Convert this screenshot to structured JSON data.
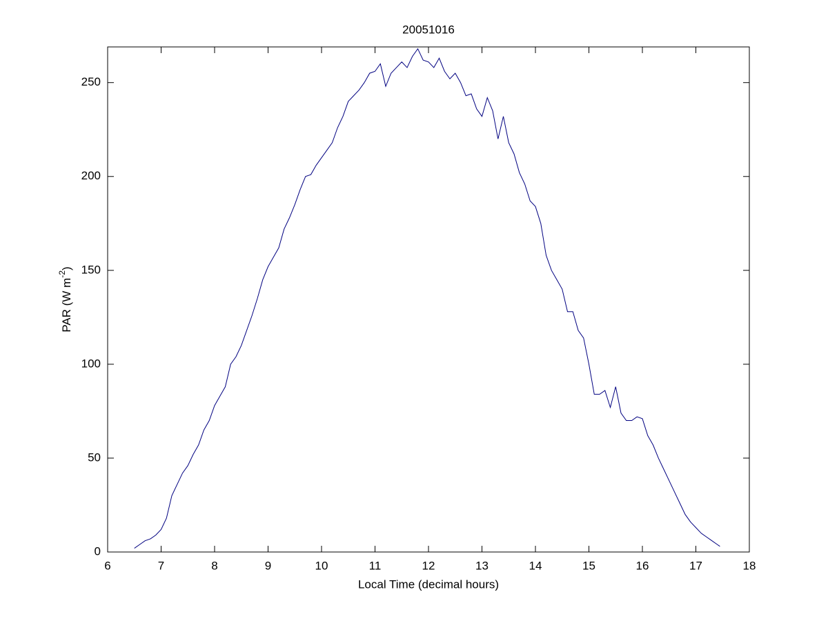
{
  "chart_data": {
    "type": "line",
    "title": "20051016",
    "xlabel": "Local Time (decimal hours)",
    "ylabel": [
      "PAR (W m",
      "-2",
      ")"
    ],
    "x": [
      6.5,
      6.6,
      6.7,
      6.8,
      6.9,
      7.0,
      7.1,
      7.2,
      7.3,
      7.4,
      7.5,
      7.6,
      7.7,
      7.8,
      7.9,
      8.0,
      8.1,
      8.2,
      8.3,
      8.4,
      8.5,
      8.6,
      8.7,
      8.8,
      8.9,
      9.0,
      9.1,
      9.2,
      9.3,
      9.4,
      9.5,
      9.6,
      9.7,
      9.8,
      9.9,
      10.0,
      10.1,
      10.2,
      10.3,
      10.4,
      10.5,
      10.6,
      10.7,
      10.8,
      10.9,
      11.0,
      11.1,
      11.2,
      11.3,
      11.4,
      11.5,
      11.6,
      11.7,
      11.8,
      11.9,
      12.0,
      12.1,
      12.2,
      12.3,
      12.4,
      12.5,
      12.6,
      12.7,
      12.8,
      12.9,
      13.0,
      13.1,
      13.2,
      13.3,
      13.4,
      13.5,
      13.6,
      13.7,
      13.8,
      13.9,
      14.0,
      14.1,
      14.2,
      14.3,
      14.4,
      14.5,
      14.6,
      14.7,
      14.8,
      14.9,
      15.0,
      15.1,
      15.2,
      15.3,
      15.4,
      15.5,
      15.6,
      15.7,
      15.8,
      15.9,
      16.0,
      16.1,
      16.2,
      16.3,
      16.4,
      16.5,
      16.6,
      16.7,
      16.8,
      16.9,
      17.0,
      17.1,
      17.2,
      17.3,
      17.4,
      17.45
    ],
    "series": [
      {
        "name": "PAR",
        "color": "#000080",
        "values": [
          2,
          4,
          6,
          7,
          9,
          12,
          18,
          30,
          36,
          42,
          46,
          52,
          57,
          65,
          70,
          78,
          83,
          88,
          100,
          104,
          110,
          118,
          126,
          135,
          145,
          152,
          157,
          162,
          172,
          178,
          185,
          193,
          200,
          201,
          206,
          210,
          214,
          218,
          226,
          232,
          240,
          243,
          246,
          250,
          255,
          256,
          260,
          248,
          255,
          258,
          261,
          258,
          264,
          268,
          262,
          261,
          258,
          263,
          256,
          252,
          255,
          250,
          243,
          244,
          236,
          232,
          242,
          235,
          220,
          232,
          218,
          212,
          202,
          196,
          187,
          184,
          175,
          158,
          150,
          145,
          140,
          128,
          128,
          118,
          114,
          100,
          84,
          84,
          86,
          77,
          88,
          74,
          70,
          70,
          72,
          71,
          62,
          57,
          50,
          44,
          38,
          32,
          26,
          20,
          16,
          13,
          10,
          8,
          6,
          4,
          3
        ]
      }
    ],
    "xlim": [
      6,
      18
    ],
    "xticks": [
      6,
      7,
      8,
      9,
      10,
      11,
      12,
      13,
      14,
      15,
      16,
      17,
      18
    ],
    "ylim": [
      0,
      269
    ],
    "yticks": [
      0,
      50,
      100,
      150,
      200,
      250
    ],
    "grid": false
  }
}
